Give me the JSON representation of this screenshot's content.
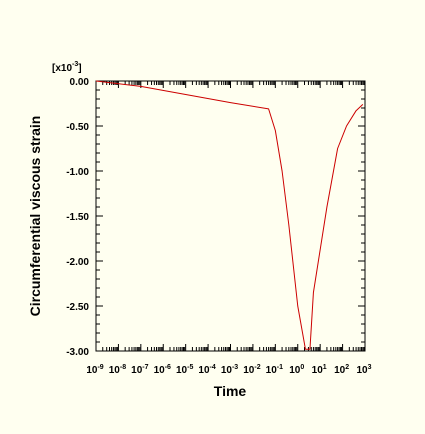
{
  "chart_data": {
    "type": "line",
    "xlabel": "Time",
    "ylabel": "Circumferential viscous strain",
    "y_multiplier": {
      "base": "[x10",
      "exponent": "-3",
      "close": "]"
    },
    "x_scale": "log",
    "xlim": [
      1e-09,
      1000
    ],
    "ylim": [
      -3.0,
      0.0
    ],
    "grid": false,
    "y_ticks": [
      {
        "value": 0.0,
        "label": "0.00"
      },
      {
        "value": -0.5,
        "label": "-0.50"
      },
      {
        "value": -1.0,
        "label": "-1.00"
      },
      {
        "value": -1.5,
        "label": "-1.50"
      },
      {
        "value": -2.0,
        "label": "-2.00"
      },
      {
        "value": -2.5,
        "label": "-2.50"
      },
      {
        "value": -3.0,
        "label": "-3.00"
      }
    ],
    "x_ticks": [
      {
        "value": 1e-09,
        "base": "10",
        "exp": "-9"
      },
      {
        "value": 1e-08,
        "base": "10",
        "exp": "-8"
      },
      {
        "value": 1e-07,
        "base": "10",
        "exp": "-7"
      },
      {
        "value": 1e-06,
        "base": "10",
        "exp": "-6"
      },
      {
        "value": 1e-05,
        "base": "10",
        "exp": "-5"
      },
      {
        "value": 0.0001,
        "base": "10",
        "exp": "-4"
      },
      {
        "value": 0.001,
        "base": "10",
        "exp": "-3"
      },
      {
        "value": 0.01,
        "base": "10",
        "exp": "-2"
      },
      {
        "value": 0.1,
        "base": "10",
        "exp": "-1"
      },
      {
        "value": 1,
        "base": "10",
        "exp": "0"
      },
      {
        "value": 10,
        "base": "10",
        "exp": "1"
      },
      {
        "value": 100,
        "base": "10",
        "exp": "2"
      },
      {
        "value": 1000,
        "base": "10",
        "exp": "3"
      }
    ],
    "series": [
      {
        "color": "#cc0000",
        "points": [
          [
            1e-09,
            0.0
          ],
          [
            1e-07,
            -0.06
          ],
          [
            1e-05,
            -0.15
          ],
          [
            0.001,
            -0.24
          ],
          [
            0.05,
            -0.31
          ],
          [
            0.1,
            -0.55
          ],
          [
            0.2,
            -1.0
          ],
          [
            0.4,
            -1.6
          ],
          [
            1.0,
            -2.5
          ],
          [
            2.2,
            -2.98
          ],
          [
            3.5,
            -2.98
          ],
          [
            5.0,
            -2.35
          ],
          [
            20,
            -1.4
          ],
          [
            60,
            -0.75
          ],
          [
            150,
            -0.5
          ],
          [
            400,
            -0.33
          ],
          [
            800,
            -0.26
          ]
        ]
      }
    ]
  }
}
